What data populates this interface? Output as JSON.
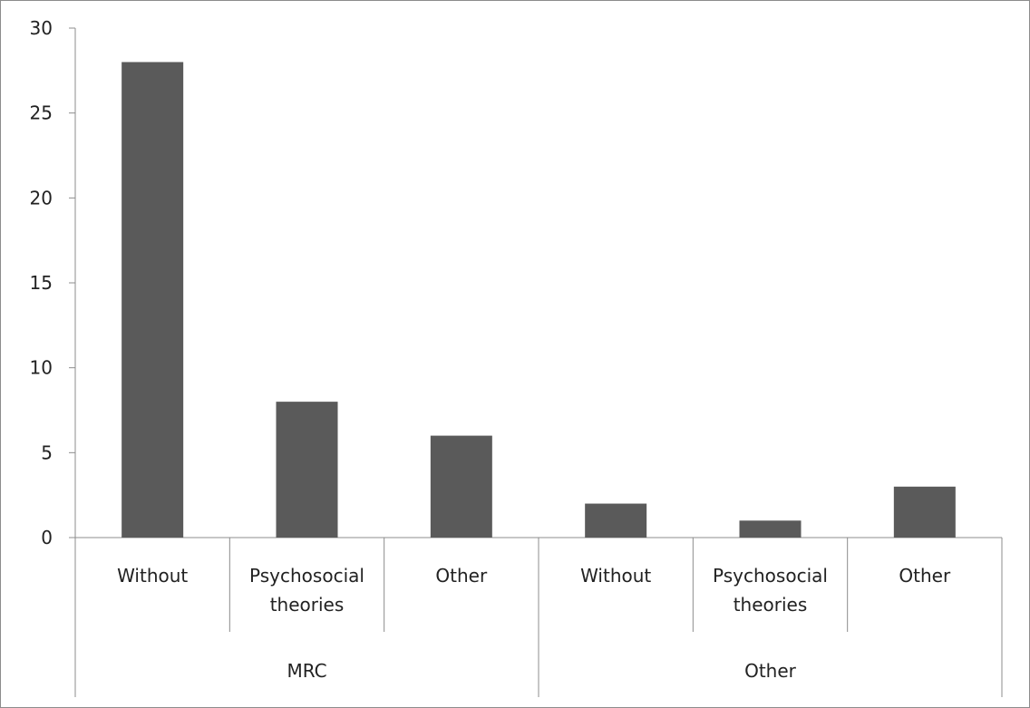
{
  "chart_data": {
    "type": "bar",
    "title": "",
    "xlabel": "",
    "ylabel": "",
    "ylim": [
      0,
      30
    ],
    "yticks": [
      0,
      5,
      10,
      15,
      20,
      25,
      30
    ],
    "grid": false,
    "legend": "none",
    "bar_color": "#5a5a5a",
    "axis_color": "#8c8c8c",
    "categories": [
      {
        "label": [
          "Without"
        ],
        "group": "MRC",
        "value": 28
      },
      {
        "label": [
          "Psychosocial",
          "theories"
        ],
        "group": "MRC",
        "value": 8
      },
      {
        "label": [
          "Other"
        ],
        "group": "MRC",
        "value": 6
      },
      {
        "label": [
          "Without"
        ],
        "group": "Other",
        "value": 2
      },
      {
        "label": [
          "Psychosocial",
          "theories"
        ],
        "group": "Other",
        "value": 1
      },
      {
        "label": [
          "Other"
        ],
        "group": "Other",
        "value": 3
      }
    ],
    "groups": [
      "MRC",
      "Other"
    ]
  }
}
